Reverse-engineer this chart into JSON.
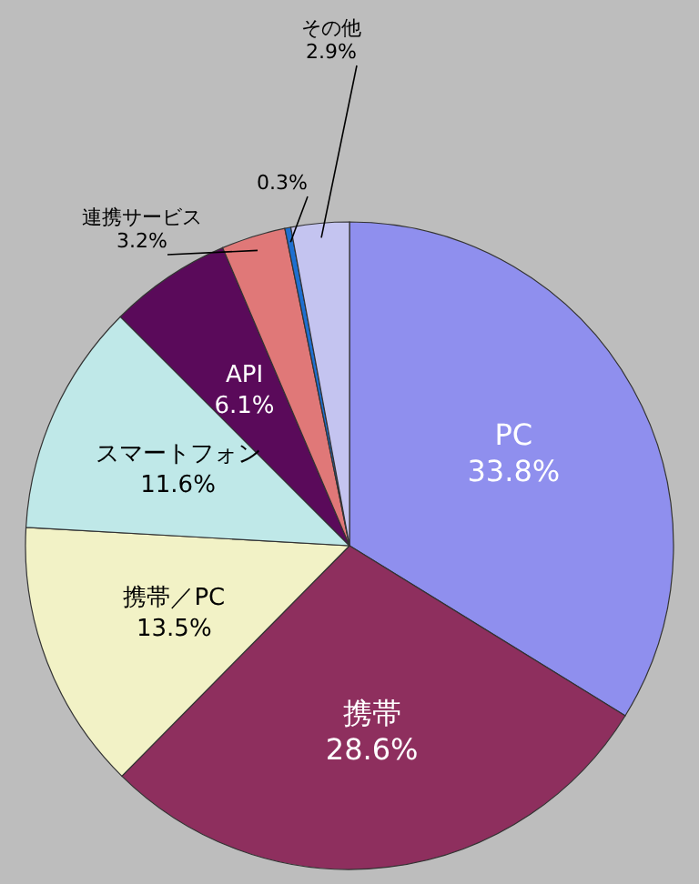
{
  "chart_data": {
    "type": "pie",
    "categories": [
      "PC",
      "携帯",
      "携帯／PC",
      "スマートフォン",
      "API",
      "連携サービス",
      null,
      "その他"
    ],
    "values": [
      33.8,
      28.6,
      13.5,
      11.6,
      6.1,
      3.2,
      0.3,
      2.9
    ],
    "colors": [
      "#8f8fee",
      "#8e2f5e",
      "#f2f2c6",
      "#bfe8e8",
      "#5a0a5a",
      "#e07878",
      "#1e6fd0",
      "#c4c4f0"
    ],
    "value_labels": [
      "33.8%",
      "28.6%",
      "13.5%",
      "11.6%",
      "6.1%",
      "3.2%",
      "0.3%",
      "2.9%"
    ]
  }
}
